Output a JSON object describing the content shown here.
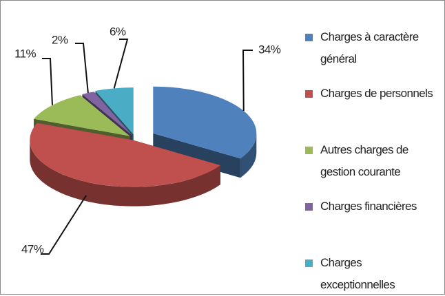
{
  "chart_data": {
    "type": "pie",
    "categories": [
      "Charges à caractère général",
      "Charges de personnels",
      "Autres charges de gestion courante",
      "Charges financières",
      "Charges exceptionnelles"
    ],
    "values": [
      34,
      47,
      11,
      2,
      6
    ],
    "value_labels": [
      "34%",
      "47%",
      "11%",
      "2%",
      "6%"
    ],
    "colors": [
      "#4f81bd",
      "#c0504d",
      "#9bbb59",
      "#8064a2",
      "#4bacc6"
    ],
    "legend": "right"
  }
}
